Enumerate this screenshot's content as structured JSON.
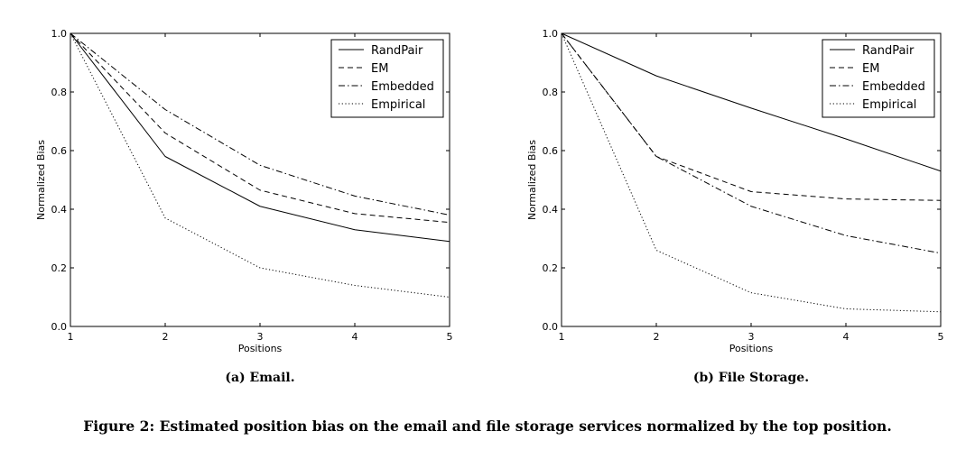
{
  "figure": {
    "caption": "Figure 2: Estimated position bias on the email and file storage services normalized by the top position."
  },
  "chart_data": [
    {
      "type": "line",
      "subcaption": "(a) Email.",
      "xlabel": "Positions",
      "ylabel": "Normalized Bias",
      "x": [
        1,
        2,
        3,
        4,
        5
      ],
      "xlim": [
        1,
        5
      ],
      "ylim": [
        0.0,
        1.0
      ],
      "xticks": [
        "1",
        "2",
        "3",
        "4",
        "5"
      ],
      "yticks": [
        "0.0",
        "0.2",
        "0.4",
        "0.6",
        "0.8",
        "1.0"
      ],
      "grid": false,
      "legend_position": "top-right",
      "series": [
        {
          "name": "RandPair",
          "style": "solid",
          "values": [
            1.0,
            0.58,
            0.41,
            0.33,
            0.29
          ]
        },
        {
          "name": "EM",
          "style": "dashed",
          "values": [
            1.0,
            0.66,
            0.465,
            0.385,
            0.355
          ]
        },
        {
          "name": "Embedded",
          "style": "dashdot",
          "values": [
            1.0,
            0.74,
            0.55,
            0.445,
            0.38
          ]
        },
        {
          "name": "Empirical",
          "style": "dotted",
          "values": [
            1.0,
            0.37,
            0.2,
            0.14,
            0.1
          ]
        }
      ]
    },
    {
      "type": "line",
      "subcaption": "(b) File Storage.",
      "xlabel": "Positions",
      "ylabel": "Normalized Bias",
      "x": [
        1,
        2,
        3,
        4,
        5
      ],
      "xlim": [
        1,
        5
      ],
      "ylim": [
        0.0,
        1.0
      ],
      "xticks": [
        "1",
        "2",
        "3",
        "4",
        "5"
      ],
      "yticks": [
        "0.0",
        "0.2",
        "0.4",
        "0.6",
        "0.8",
        "1.0"
      ],
      "grid": false,
      "legend_position": "top-right",
      "series": [
        {
          "name": "RandPair",
          "style": "solid",
          "values": [
            1.0,
            0.855,
            0.745,
            0.64,
            0.53
          ]
        },
        {
          "name": "EM",
          "style": "dashed",
          "values": [
            1.0,
            0.58,
            0.46,
            0.435,
            0.43
          ]
        },
        {
          "name": "Embedded",
          "style": "dashdot",
          "values": [
            1.0,
            0.58,
            0.41,
            0.31,
            0.25
          ]
        },
        {
          "name": "Empirical",
          "style": "dotted",
          "values": [
            1.0,
            0.26,
            0.115,
            0.06,
            0.05
          ]
        }
      ]
    }
  ]
}
